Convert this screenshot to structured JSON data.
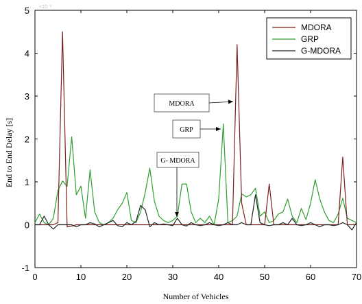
{
  "chart_data": {
    "type": "line",
    "xlabel": "Number of Vehicles",
    "ylabel": "End to End Delay [s]",
    "xlim": [
      0,
      70
    ],
    "ylim": [
      -1,
      5
    ],
    "xticks": [
      0,
      10,
      20,
      30,
      40,
      50,
      60,
      70
    ],
    "yticks": [
      -1,
      0,
      1,
      2,
      3,
      4,
      5
    ],
    "grid": false,
    "legend_position": "top-right",
    "series": [
      {
        "name": "MDORA",
        "color": "#7a1e1e",
        "x": [
          0,
          1,
          2,
          3,
          4,
          5,
          6,
          7,
          8,
          9,
          10,
          11,
          12,
          13,
          14,
          15,
          16,
          17,
          18,
          19,
          20,
          21,
          22,
          23,
          24,
          25,
          26,
          27,
          28,
          29,
          30,
          31,
          32,
          33,
          34,
          35,
          36,
          37,
          38,
          39,
          40,
          41,
          42,
          43,
          44,
          45,
          46,
          47,
          48,
          49,
          50,
          51,
          52,
          53,
          54,
          55,
          56,
          57,
          58,
          59,
          60,
          61,
          62,
          63,
          64,
          65,
          66,
          67,
          68,
          69,
          70
        ],
        "values": [
          0,
          0,
          0,
          0,
          0,
          0.05,
          4.5,
          -0.05,
          -0.03,
          0,
          0,
          0,
          0,
          0,
          0,
          0,
          0,
          0,
          0,
          0,
          0,
          0,
          0,
          0,
          0,
          0,
          0,
          0,
          0,
          0,
          0,
          0,
          0,
          0,
          0,
          0,
          0,
          0,
          0,
          0,
          0,
          0,
          0,
          0,
          4.2,
          0.5,
          0,
          0,
          0,
          0,
          0,
          0.95,
          0,
          0,
          0,
          0,
          0,
          0,
          0,
          0,
          0,
          0,
          0,
          0,
          0,
          0,
          0,
          1.58,
          0,
          0,
          0
        ]
      },
      {
        "name": "GRP",
        "color": "#2e9e2e",
        "x": [
          0,
          1,
          2,
          3,
          4,
          5,
          6,
          7,
          8,
          9,
          10,
          11,
          12,
          13,
          14,
          15,
          16,
          17,
          18,
          19,
          20,
          21,
          22,
          23,
          24,
          25,
          26,
          27,
          28,
          29,
          30,
          31,
          32,
          33,
          34,
          35,
          36,
          37,
          38,
          39,
          40,
          41,
          42,
          43,
          44,
          45,
          46,
          47,
          48,
          49,
          50,
          51,
          52,
          53,
          54,
          55,
          56,
          57,
          58,
          59,
          60,
          61,
          62,
          63,
          64,
          65,
          66,
          67,
          68,
          69,
          70
        ],
        "values": [
          0.05,
          0.25,
          0.05,
          0,
          0.15,
          0.8,
          1.02,
          0.9,
          2.05,
          0.7,
          0.9,
          0.15,
          1.28,
          0.3,
          0.05,
          0,
          0.05,
          0.15,
          0.35,
          0.5,
          0.75,
          0.1,
          0.05,
          0.3,
          0.75,
          1.32,
          0.55,
          0.2,
          0.1,
          0.05,
          0.1,
          0.2,
          0.95,
          0.95,
          0.3,
          0.05,
          0.15,
          0.05,
          0.2,
          0,
          0.6,
          2.35,
          0.05,
          0.1,
          0.2,
          0.72,
          0.65,
          0.7,
          0.85,
          0.2,
          0.3,
          0.05,
          0.1,
          0.25,
          0.3,
          0.6,
          0.2,
          0.05,
          0.38,
          0.12,
          0.5,
          1.05,
          0.6,
          0.3,
          0.1,
          0.05,
          0.25,
          0.62,
          0.15,
          0.1,
          0.05
        ]
      },
      {
        "name": "G-MDORA",
        "color": "#222222",
        "x": [
          0,
          1,
          2,
          3,
          4,
          5,
          6,
          7,
          8,
          9,
          10,
          11,
          12,
          13,
          14,
          15,
          16,
          17,
          18,
          19,
          20,
          21,
          22,
          23,
          24,
          25,
          26,
          27,
          28,
          29,
          30,
          31,
          32,
          33,
          34,
          35,
          36,
          37,
          38,
          39,
          40,
          41,
          42,
          43,
          44,
          45,
          46,
          47,
          48,
          49,
          50,
          51,
          52,
          53,
          54,
          55,
          56,
          57,
          58,
          59,
          60,
          61,
          62,
          63,
          64,
          65,
          66,
          67,
          68,
          69,
          70
        ],
        "values": [
          0,
          0,
          0.2,
          0,
          -0.1,
          0,
          0,
          0,
          0,
          -0.05,
          0,
          0,
          0.05,
          0.02,
          -0.05,
          0,
          0.05,
          0.1,
          -0.02,
          -0.05,
          0.05,
          0,
          0.08,
          0.45,
          0.35,
          -0.05,
          0.05,
          0,
          0.02,
          0,
          -0.02,
          0.15,
          0,
          -0.03,
          0.05,
          0,
          -0.02,
          0,
          0.05,
          0,
          -0.02,
          0,
          0.05,
          0,
          0,
          0.05,
          0,
          0,
          0.7,
          0.05,
          0,
          -0.02,
          0,
          0,
          0.05,
          0,
          0.15,
          0,
          -0.02,
          0,
          0.05,
          0,
          -0.05,
          0,
          0,
          -0.02,
          0,
          0.05,
          0,
          -0.12,
          0.05
        ]
      }
    ],
    "annotations": [
      {
        "text": "MDORA",
        "x": 44,
        "y": 2.8
      },
      {
        "text": "GRP",
        "x": 41,
        "y": 2.2
      },
      {
        "text": "G- MDORA",
        "x": 31,
        "y": 0.15
      }
    ],
    "corner_label": "×10⁻³"
  }
}
